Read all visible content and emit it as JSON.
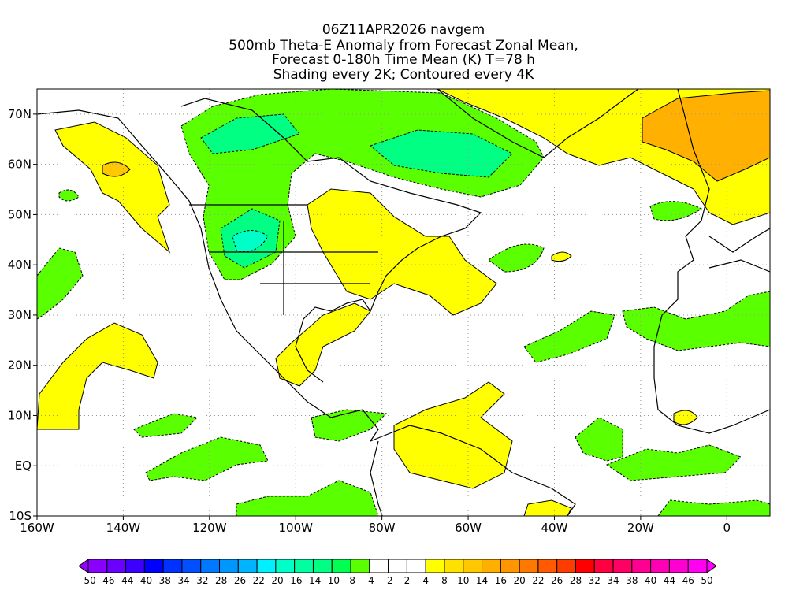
{
  "title": {
    "line1": "06Z11APR2026 navgem",
    "line2": "500mb Theta-E Anomaly from Forecast Zonal Mean,",
    "line3": "Forecast 0-180h Time Mean (K) T=78 h",
    "line4": "Shading every 2K; Contoured every 4K"
  },
  "map": {
    "lon_range": [
      -160,
      10
    ],
    "lat_range": [
      -10,
      75
    ],
    "lon_ticks": [
      {
        "value": -160,
        "label": "160W"
      },
      {
        "value": -140,
        "label": "140W"
      },
      {
        "value": -120,
        "label": "120W"
      },
      {
        "value": -100,
        "label": "100W"
      },
      {
        "value": -80,
        "label": "80W"
      },
      {
        "value": -60,
        "label": "60W"
      },
      {
        "value": -40,
        "label": "40W"
      },
      {
        "value": -20,
        "label": "20W"
      },
      {
        "value": 0,
        "label": "0"
      }
    ],
    "lat_ticks": [
      {
        "value": 70,
        "label": "70N"
      },
      {
        "value": 60,
        "label": "60N"
      },
      {
        "value": 50,
        "label": "50N"
      },
      {
        "value": 40,
        "label": "40N"
      },
      {
        "value": 30,
        "label": "30N"
      },
      {
        "value": 20,
        "label": "20N"
      },
      {
        "value": 10,
        "label": "10N"
      },
      {
        "value": 0,
        "label": "EQ"
      },
      {
        "value": -10,
        "label": "10S"
      }
    ]
  },
  "colorbar": {
    "labels": [
      "-50",
      "-46",
      "-44",
      "-40",
      "-38",
      "-34",
      "-32",
      "-28",
      "-26",
      "-22",
      "-20",
      "-16",
      "-14",
      "-10",
      "-8",
      "-4",
      "-2",
      "2",
      "4",
      "8",
      "10",
      "14",
      "16",
      "20",
      "22",
      "26",
      "28",
      "32",
      "34",
      "38",
      "40",
      "44",
      "46",
      "50"
    ],
    "colors": [
      "#8a00ff",
      "#6a00ff",
      "#3c00ff",
      "#0000ff",
      "#0032ff",
      "#0050ff",
      "#0078ff",
      "#0096ff",
      "#00b4ff",
      "#00f0ff",
      "#00ffc8",
      "#00ffa0",
      "#00ff82",
      "#00ff50",
      "#5aff00",
      "#ffffff",
      "#ffffff",
      "#ffffff",
      "#ffff00",
      "#ffe100",
      "#ffc800",
      "#ffaf00",
      "#ff9600",
      "#ff7800",
      "#ff5a00",
      "#ff3c00",
      "#ff0000",
      "#ff0040",
      "#ff0064",
      "#ff0090",
      "#ff00b4",
      "#ff00d2",
      "#ff00f0"
    ],
    "low_color": "#9600ff",
    "high_color": "#ff00ff"
  }
}
